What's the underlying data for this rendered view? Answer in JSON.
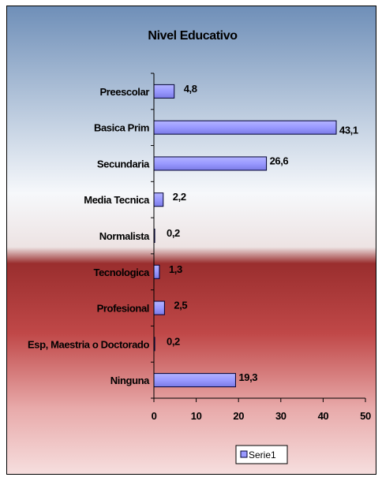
{
  "chart_data": {
    "type": "bar",
    "orientation": "horizontal",
    "title": "Nivel Educativo",
    "categories": [
      "Preescolar",
      "Basica Prim",
      "Secundaria",
      "Media Tecnica",
      "Normalista",
      "Tecnologica",
      "Profesional",
      "Esp, Maestria o Doctorado",
      "Ninguna"
    ],
    "series": [
      {
        "name": "Serie1",
        "values": [
          4.8,
          43.1,
          26.6,
          2.2,
          0.2,
          1.3,
          2.5,
          0.2,
          19.3
        ],
        "labels": [
          "4,8",
          "43,1",
          "26,6",
          "2,2",
          "0,2",
          "1,3",
          "2,5",
          "0,2",
          "19,3"
        ]
      }
    ],
    "xlim": [
      0,
      50
    ],
    "xticks": [
      0,
      10,
      20,
      30,
      40,
      50
    ],
    "grid": false,
    "legend": "bottom-right",
    "colors": {
      "bar_fill": "#9999ff",
      "bar_stroke": "#000033",
      "bg_top": "#6f8fb8",
      "bg_mid": "#f6f8fb",
      "bg_red": "#a23434"
    }
  }
}
